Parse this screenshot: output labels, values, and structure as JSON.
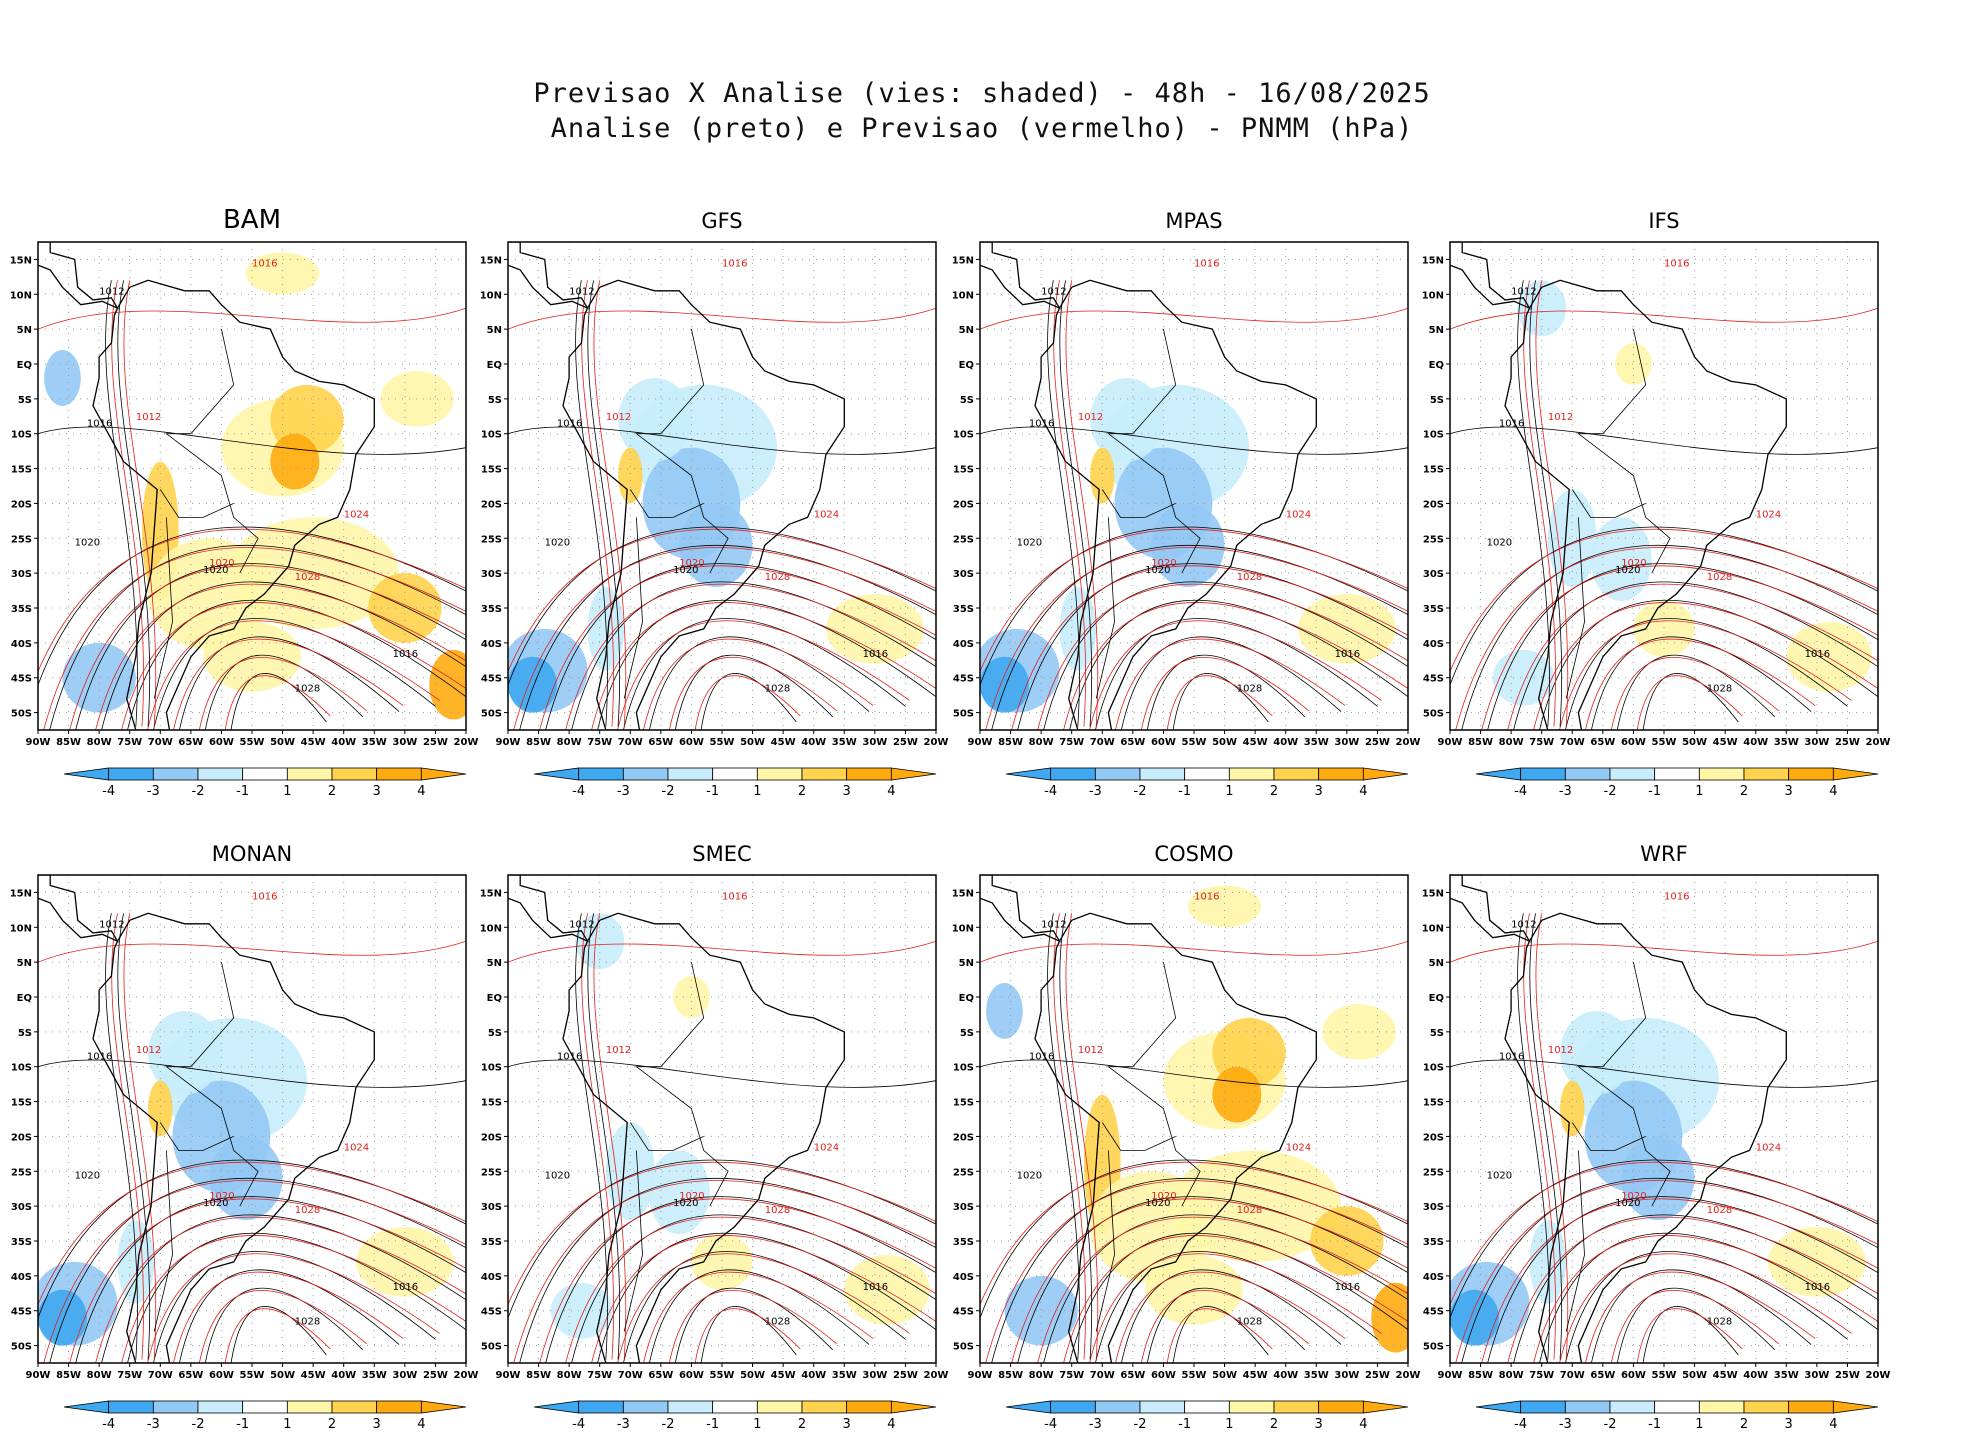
{
  "header": {
    "line1": "Previsao X Analise (vies: shaded) - 48h - 16/08/2025",
    "line2": "Analise (preto) e Previsao (vermelho) - PNMM (hPa)"
  },
  "lat_ticks": [
    "15N",
    "10N",
    "5N",
    "EQ",
    "5S",
    "10S",
    "15S",
    "20S",
    "25S",
    "30S",
    "35S",
    "40S",
    "45S",
    "50S"
  ],
  "lon_ticks": [
    "90W",
    "85W",
    "80W",
    "75W",
    "70W",
    "65W",
    "60W",
    "55W",
    "50W",
    "45W",
    "40W",
    "35W",
    "30W",
    "25W",
    "20W"
  ],
  "colorbar": {
    "labels": [
      "-4",
      "-3",
      "-2",
      "-1",
      "1",
      "2",
      "3",
      "4"
    ],
    "colors": [
      "#3fa8f0",
      "#93c9f5",
      "#c8ecfb",
      "#ffffff",
      "#fff6a8",
      "#ffd34d",
      "#ffab10"
    ]
  },
  "colors": {
    "analysis": "#000000",
    "forecast": "#e0201c"
  },
  "isobar_labels": {
    "analysis": [
      "1012",
      "1016",
      "1020",
      "1024",
      "1028"
    ],
    "forecast": [
      "1012",
      "1016",
      "1020",
      "1024",
      "1028"
    ]
  },
  "panels": [
    {
      "name": "BAM",
      "bias": "warm"
    },
    {
      "name": "GFS",
      "bias": "cool"
    },
    {
      "name": "MPAS",
      "bias": "cool"
    },
    {
      "name": "IFS",
      "bias": "neutral"
    },
    {
      "name": "MONAN",
      "bias": "cool"
    },
    {
      "name": "SMEC",
      "bias": "neutral"
    },
    {
      "name": "COSMO",
      "bias": "warm"
    },
    {
      "name": "WRF",
      "bias": "cool"
    }
  ]
}
